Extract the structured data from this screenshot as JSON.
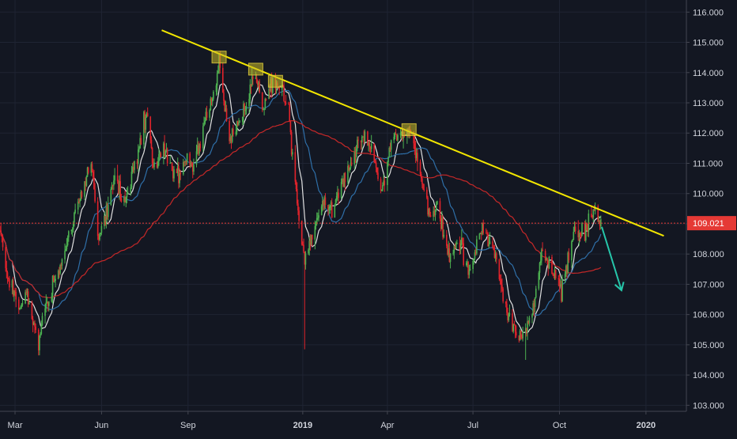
{
  "chart_data": {
    "type": "candlestick",
    "instrument_hint": "USDJPY daily",
    "x_ticks": [
      {
        "label": "Mar",
        "date": "2018-03-01",
        "bold": false
      },
      {
        "label": "Jun",
        "date": "2018-06-01",
        "bold": false
      },
      {
        "label": "Sep",
        "date": "2018-09-01",
        "bold": false
      },
      {
        "label": "2019",
        "date": "2019-01-01",
        "bold": true
      },
      {
        "label": "Apr",
        "date": "2019-04-01",
        "bold": false
      },
      {
        "label": "Jul",
        "date": "2019-07-01",
        "bold": false
      },
      {
        "label": "Oct",
        "date": "2019-10-01",
        "bold": false
      },
      {
        "label": "2020",
        "date": "2020-01-01",
        "bold": true
      }
    ],
    "y_ticks": [
      "103.000",
      "104.000",
      "105.000",
      "106.000",
      "107.000",
      "108.000",
      "109.000",
      "110.000",
      "111.000",
      "112.000",
      "113.000",
      "114.000",
      "115.000",
      "116.000"
    ],
    "y_range": [
      102.8,
      116.4
    ],
    "x_range": [
      "2018-02-13",
      "2020-02-13"
    ],
    "grid": true,
    "current_price": {
      "value": 109.021,
      "label": "109.021",
      "color": "#e53935"
    },
    "series_price_path": [
      [
        "2018-02-13",
        108.8
      ],
      [
        "2018-02-20",
        107.3
      ],
      [
        "2018-03-01",
        106.6
      ],
      [
        "2018-03-07",
        106.0
      ],
      [
        "2018-03-13",
        106.9
      ],
      [
        "2018-03-20",
        105.9
      ],
      [
        "2018-03-26",
        105.0
      ],
      [
        "2018-03-30",
        106.0
      ],
      [
        "2018-04-10",
        107.0
      ],
      [
        "2018-04-20",
        107.6
      ],
      [
        "2018-05-03",
        109.3
      ],
      [
        "2018-05-10",
        109.8
      ],
      [
        "2018-05-21",
        111.1
      ],
      [
        "2018-05-29",
        108.6
      ],
      [
        "2018-06-08",
        109.6
      ],
      [
        "2018-06-15",
        110.5
      ],
      [
        "2018-06-25",
        109.7
      ],
      [
        "2018-07-05",
        110.8
      ],
      [
        "2018-07-19",
        112.7
      ],
      [
        "2018-07-26",
        110.9
      ],
      [
        "2018-08-06",
        111.4
      ],
      [
        "2018-08-20",
        110.5
      ],
      [
        "2018-08-28",
        111.1
      ],
      [
        "2018-09-07",
        110.9
      ],
      [
        "2018-09-20",
        112.5
      ],
      [
        "2018-10-01",
        113.8
      ],
      [
        "2018-10-04",
        114.4
      ],
      [
        "2018-10-15",
        111.8
      ],
      [
        "2018-10-25",
        112.2
      ],
      [
        "2018-11-05",
        113.3
      ],
      [
        "2018-11-12",
        114.0
      ],
      [
        "2018-11-20",
        112.6
      ],
      [
        "2018-11-28",
        113.7
      ],
      [
        "2018-12-10",
        113.4
      ],
      [
        "2018-12-17",
        112.8
      ],
      [
        "2018-12-24",
        110.3
      ],
      [
        "2019-01-03",
        107.7
      ],
      [
        "2019-01-10",
        108.4
      ],
      [
        "2019-01-22",
        109.7
      ],
      [
        "2019-02-01",
        109.3
      ],
      [
        "2019-02-15",
        110.5
      ],
      [
        "2019-03-05",
        111.9
      ],
      [
        "2019-03-14",
        111.5
      ],
      [
        "2019-03-26",
        110.0
      ],
      [
        "2019-04-05",
        111.7
      ],
      [
        "2019-04-24",
        112.1
      ],
      [
        "2019-05-03",
        111.2
      ],
      [
        "2019-05-14",
        109.4
      ],
      [
        "2019-05-24",
        109.5
      ],
      [
        "2019-06-05",
        108.0
      ],
      [
        "2019-06-18",
        108.4
      ],
      [
        "2019-06-26",
        107.4
      ],
      [
        "2019-07-10",
        108.8
      ],
      [
        "2019-07-24",
        108.2
      ],
      [
        "2019-08-02",
        106.6
      ],
      [
        "2019-08-12",
        105.3
      ],
      [
        "2019-08-23",
        105.4
      ],
      [
        "2019-09-03",
        106.1
      ],
      [
        "2019-09-12",
        108.1
      ],
      [
        "2019-09-20",
        107.6
      ],
      [
        "2019-10-03",
        106.9
      ],
      [
        "2019-10-17",
        108.7
      ],
      [
        "2019-10-30",
        108.8
      ],
      [
        "2019-11-07",
        109.4
      ],
      [
        "2019-11-14",
        109.0
      ]
    ],
    "moving_averages": [
      {
        "name": "",
        "color": "#e0e0e0",
        "window": 10
      },
      {
        "name": "",
        "color": "#2f6fa8",
        "window": 30
      },
      {
        "name": "",
        "color": "#c62828",
        "window": 100
      }
    ],
    "trendline": {
      "color": "#f2e600",
      "start": [
        "2018-08-04",
        115.4
      ],
      "end": [
        "2020-01-20",
        108.6
      ]
    },
    "highlight_boxes": [
      {
        "date": "2018-10-04",
        "price": 114.5
      },
      {
        "date": "2018-11-12",
        "price": 114.1
      },
      {
        "date": "2018-12-03",
        "price": 113.7
      },
      {
        "date": "2019-04-24",
        "price": 112.1
      }
    ],
    "forecast_arrow": {
      "color": "#26c6aa",
      "start": [
        "2019-11-15",
        108.9
      ],
      "end": [
        "2019-12-06",
        106.8
      ]
    },
    "colors": {
      "up": "#4caf50",
      "down": "#e0232b",
      "background": "#131722",
      "grid": "#1f2433",
      "axis_text": "#d1d4dc"
    }
  }
}
